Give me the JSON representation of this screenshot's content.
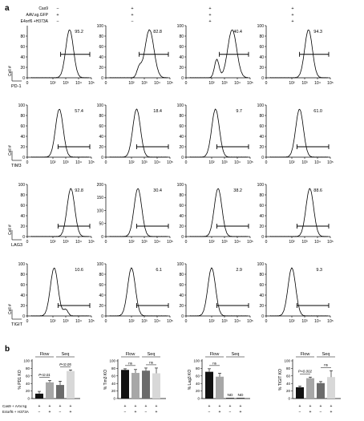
{
  "panel_labels": {
    "a": "a",
    "b": "b"
  },
  "conditions_header": [
    {
      "label": "Cas9",
      "values": [
        "−",
        "+",
        "+",
        "+"
      ]
    },
    {
      "label": "AAV.sg.GFP",
      "values": [
        "+",
        "+",
        "+",
        "+"
      ]
    },
    {
      "label": "E4orf6 +H373A",
      "values": [
        "−",
        "−",
        "+",
        "+"
      ]
    }
  ],
  "chart_data": [
    {
      "type": "histogram-grid",
      "row_markers": [
        "PD-1",
        "TIM3",
        "LAG3",
        "TIGIT"
      ],
      "x_ticks": [
        "0",
        "10²",
        "10³",
        "10⁴",
        "10⁵"
      ],
      "ylabel": "Cell #",
      "panels": [
        [
          {
            "ymax": 100,
            "yticks": [
              "0",
              "20",
              "40",
              "60",
              "80"
            ],
            "pct": "95.2",
            "peak_log": 3.3,
            "width": 0.3,
            "secondary": null
          },
          {
            "ymax": 100,
            "yticks": [
              "0",
              "20",
              "40",
              "60",
              "80",
              "100"
            ],
            "pct": "82.8",
            "peak_log": 3.4,
            "width": 0.35,
            "secondary": {
              "pos": 2.6,
              "rel": 0.18
            }
          },
          {
            "ymax": 100,
            "yticks": [
              "0",
              "20",
              "40",
              "60",
              "80",
              "100"
            ],
            "pct": "40.4",
            "peak_log": 3.6,
            "width": 0.35,
            "secondary": {
              "pos": 2.4,
              "rel": 0.35
            }
          },
          {
            "ymax": 100,
            "yticks": [
              "0",
              "20",
              "40",
              "60",
              "80",
              "100"
            ],
            "pct": "94.3",
            "peak_log": 3.3,
            "width": 0.3,
            "secondary": null
          }
        ],
        [
          {
            "ymax": 100,
            "yticks": [
              "0",
              "20",
              "40",
              "60",
              "80",
              "100"
            ],
            "pct": "57.4",
            "peak_log": 2.5,
            "width": 0.3,
            "secondary": null
          },
          {
            "ymax": 100,
            "yticks": [
              "0",
              "20",
              "40",
              "60",
              "80",
              "100"
            ],
            "pct": "18.4",
            "peak_log": 2.4,
            "width": 0.3,
            "secondary": null
          },
          {
            "ymax": 100,
            "yticks": [
              "0",
              "20",
              "40",
              "60",
              "80",
              "100"
            ],
            "pct": "9.7",
            "peak_log": 2.3,
            "width": 0.3,
            "secondary": null
          },
          {
            "ymax": 100,
            "yticks": [
              "0",
              "20",
              "40",
              "60",
              "80",
              "100"
            ],
            "pct": "61.0",
            "peak_log": 2.6,
            "width": 0.3,
            "secondary": null
          }
        ],
        [
          {
            "ymax": 100,
            "yticks": [
              "0",
              "20",
              "40",
              "60",
              "80",
              "100"
            ],
            "pct": "92.8",
            "peak_log": 3.4,
            "width": 0.3,
            "secondary": null
          },
          {
            "ymax": 200,
            "yticks": [
              "0",
              "50",
              "100",
              "150",
              "200"
            ],
            "pct": "30.4",
            "peak_log": 2.5,
            "width": 0.3,
            "secondary": null
          },
          {
            "ymax": 100,
            "yticks": [
              "0",
              "20",
              "40",
              "60",
              "80",
              "100"
            ],
            "pct": "38.2",
            "peak_log": 2.5,
            "width": 0.3,
            "secondary": null
          },
          {
            "ymax": 100,
            "yticks": [
              "0",
              "20",
              "40",
              "60",
              "80",
              "100"
            ],
            "pct": "88.6",
            "peak_log": 3.4,
            "width": 0.3,
            "secondary": null
          }
        ],
        [
          {
            "ymax": 100,
            "yticks": [
              "0",
              "20",
              "40",
              "60",
              "80",
              "100"
            ],
            "pct": "10.6",
            "peak_log": 2.1,
            "width": 0.3,
            "secondary": {
              "pos": 3.0,
              "rel": 0.12
            }
          },
          {
            "ymax": 100,
            "yticks": [
              "0",
              "20",
              "40",
              "60",
              "80",
              "100"
            ],
            "pct": "6.1",
            "peak_log": 2.0,
            "width": 0.3,
            "secondary": null
          },
          {
            "ymax": 100,
            "yticks": [
              "0",
              "20",
              "40",
              "60",
              "80",
              "100"
            ],
            "pct": "2.9",
            "peak_log": 2.0,
            "width": 0.3,
            "secondary": null
          },
          {
            "ymax": 100,
            "yticks": [
              "0",
              "20",
              "40",
              "60",
              "80",
              "100"
            ],
            "pct": "9.3",
            "peak_log": 2.0,
            "width": 0.3,
            "secondary": null
          }
        ]
      ]
    },
    {
      "type": "bar",
      "bar_colors": [
        "#111111",
        "#a7a7a7",
        "#6b6b6b",
        "#d8d8d8"
      ],
      "group_labels": [
        "Flow",
        "Seq"
      ],
      "row_labels": [
        "Cas9 + AAV.sg",
        "E4orf6 + H373A"
      ],
      "row_values": [
        [
          "+",
          "+",
          "+",
          "+"
        ],
        [
          "−",
          "+",
          "−",
          "+"
        ]
      ],
      "charts": [
        {
          "ylabel": "% PD1 KO",
          "ylim": [
            0,
            100
          ],
          "yticks": [
            "0",
            "20",
            "40",
            "60",
            "80",
            "100"
          ],
          "values": [
            13,
            43,
            36,
            73
          ],
          "errors": [
            6,
            5,
            10,
            3
          ],
          "annotations": [
            {
              "text": "P<0.01",
              "pair": [
                0,
                1
              ],
              "underline": true
            },
            {
              "text": "P<0.05",
              "pair": [
                2,
                3
              ],
              "underline": true
            }
          ]
        },
        {
          "ylabel": "% Tim3 KO",
          "ylim": [
            0,
            100
          ],
          "yticks": [
            "0",
            "20",
            "40",
            "60",
            "80",
            "100"
          ],
          "values": [
            76,
            68,
            74,
            67
          ],
          "errors": [
            3,
            9,
            7,
            14
          ],
          "annotations": [
            {
              "text": "ns",
              "pair": [
                0,
                1
              ],
              "underline": true
            },
            {
              "text": "ns",
              "pair": [
                2,
                3
              ],
              "underline": true
            }
          ]
        },
        {
          "ylabel": "% Lag3 KO",
          "ylim": [
            0,
            100
          ],
          "yticks": [
            "0",
            "20",
            "40",
            "60",
            "80",
            "100"
          ],
          "values": [
            71,
            58,
            null,
            null
          ],
          "errors": [
            8,
            9,
            null,
            null
          ],
          "nd_label": "ND",
          "annotations": [
            {
              "text": "ns",
              "pair": [
                0,
                1
              ],
              "underline": true
            }
          ]
        },
        {
          "ylabel": "% TIGIT KO",
          "ylim": [
            0,
            100
          ],
          "yticks": [
            "0",
            "20",
            "40",
            "60",
            "80",
            "100"
          ],
          "values": [
            30,
            54,
            41,
            57
          ],
          "errors": [
            3,
            3,
            4,
            17
          ],
          "annotations": [
            {
              "text": "P<0.002",
              "pair": [
                0,
                1
              ],
              "underline": true
            },
            {
              "text": "ns",
              "pair": [
                2,
                3
              ],
              "underline": true
            }
          ]
        }
      ]
    }
  ]
}
